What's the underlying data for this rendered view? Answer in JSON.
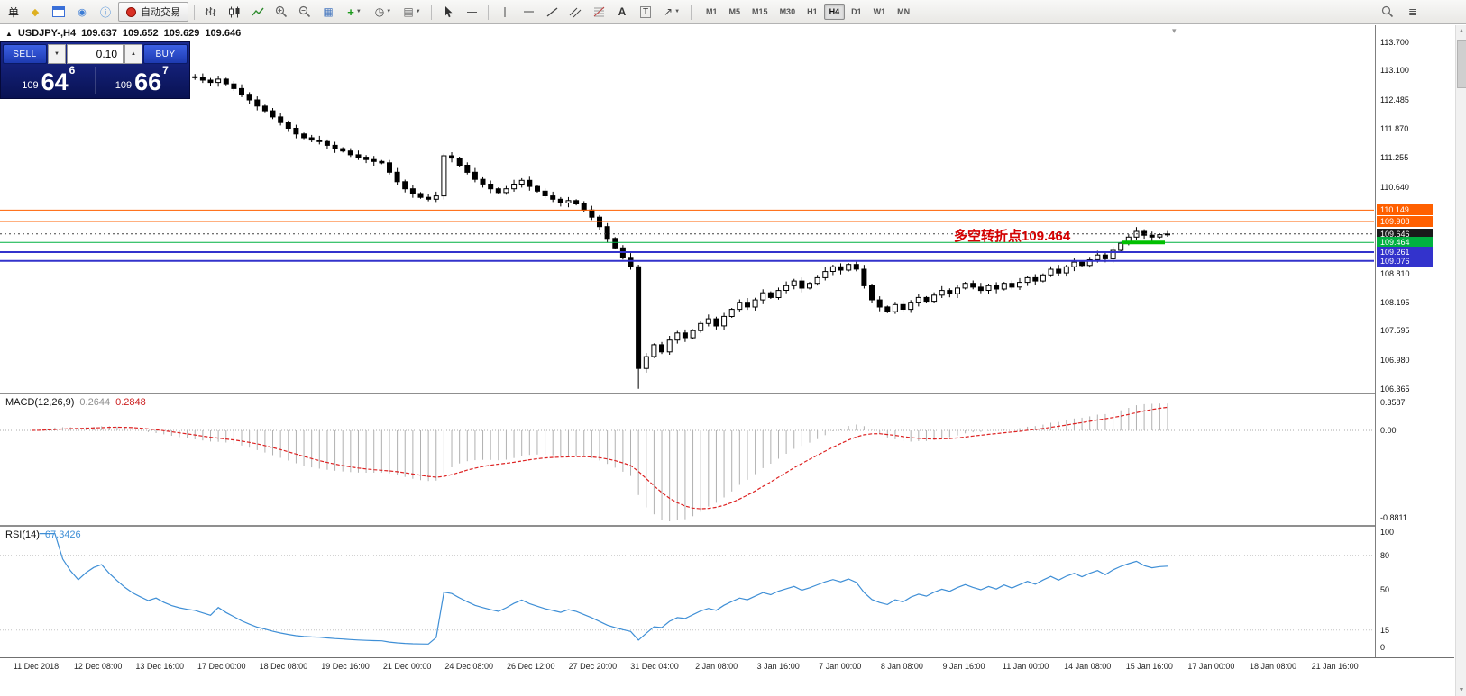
{
  "toolbar": {
    "order_char": "单",
    "autotrading": "自动交易",
    "timeframes": [
      "M1",
      "M5",
      "M15",
      "M30",
      "H1",
      "H4",
      "D1",
      "W1",
      "MN"
    ],
    "active_timeframe": "H4"
  },
  "chart_header": {
    "marker": "▲",
    "symbol": "USDJPY-,H4",
    "open": "109.637",
    "high": "109.652",
    "low": "109.629",
    "close": "109.646"
  },
  "trade_panel": {
    "sell": "SELL",
    "buy": "BUY",
    "lot": "0.10",
    "sell_small": "109",
    "sell_big": "64",
    "sell_sup": "6",
    "buy_small": "109",
    "buy_big": "66",
    "buy_sup": "7"
  },
  "annotation": {
    "text": "多空转折点",
    "value": "109.464"
  },
  "price_axis_labels": [
    "113.700",
    "113.100",
    "112.485",
    "111.870",
    "111.255",
    "110.640",
    "108.810",
    "108.195",
    "107.595",
    "106.980",
    "106.365"
  ],
  "price_levels": [
    {
      "price": 110.149,
      "label": "110.149",
      "color": "#ff6000",
      "thickness": 1,
      "current": false
    },
    {
      "price": 109.908,
      "label": "109.908",
      "color": "#ff6000",
      "thickness": 1,
      "current": false
    },
    {
      "price": 109.646,
      "label": "109.646",
      "color": "#1a1a1a",
      "thickness": 1,
      "current": true
    },
    {
      "price": 109.464,
      "label": "109.464",
      "color": "#00b140",
      "thickness": 1,
      "current": false
    },
    {
      "price": 109.261,
      "label": "109.261",
      "color": "#3333cc",
      "thickness": 2,
      "current": false
    },
    {
      "price": 109.076,
      "label": "109.076",
      "color": "#3333cc",
      "thickness": 2,
      "current": false
    }
  ],
  "macd_panel": {
    "title": "MACD(12,26,9)",
    "value_main": "0.2644",
    "value_signal": "0.2848",
    "axis_top": "0.3587",
    "axis_zero": "0.00",
    "axis_bottom": "-0.8811"
  },
  "rsi_panel": {
    "title": "RSI(14)",
    "value": "67.3426",
    "axis": [
      100,
      80,
      50,
      15,
      0
    ],
    "levels": [
      80,
      15
    ]
  },
  "time_axis": [
    "11 Dec 2018",
    "12 Dec 08:00",
    "13 Dec 16:00",
    "17 Dec 00:00",
    "18 Dec 08:00",
    "19 Dec 16:00",
    "21 Dec 00:00",
    "24 Dec 08:00",
    "26 Dec 12:00",
    "27 Dec 20:00",
    "31 Dec 04:00",
    "2 Jan 08:00",
    "3 Jan 16:00",
    "7 Jan 00:00",
    "8 Jan 08:00",
    "9 Jan 16:00",
    "11 Jan 00:00",
    "14 Jan 08:00",
    "15 Jan 16:00",
    "17 Jan 00:00",
    "18 Jan 08:00",
    "21 Jan 16:00"
  ],
  "colors": {
    "badge_orange": "#ff6000",
    "badge_green": "#00b140",
    "badge_blue": "#3333cc",
    "current_badge": "#1a1a1a",
    "macd_signal_red": "#dd2222",
    "macd_histogram": "#b0b0b0",
    "rsi_blue": "#3f8fd6",
    "annotation_red": "#d40000",
    "annotation_green": "#00c000",
    "panel_navy": "#101c7a",
    "button_blue": "#2447c8"
  },
  "chart_data": {
    "type": "candlestick",
    "symbol": "USDJPY-",
    "timeframe": "H4",
    "ylim": [
      106.27,
      114.06
    ],
    "x_labels": [
      "11 Dec 2018",
      "12 Dec 08:00",
      "13 Dec 16:00",
      "17 Dec 00:00",
      "18 Dec 08:00",
      "19 Dec 16:00",
      "21 Dec 00:00",
      "24 Dec 08:00",
      "26 Dec 12:00",
      "27 Dec 20:00",
      "31 Dec 04:00",
      "2 Jan 08:00",
      "3 Jan 16:00",
      "7 Jan 00:00",
      "8 Jan 08:00",
      "9 Jan 16:00",
      "11 Jan 00:00",
      "14 Jan 08:00",
      "15 Jan 16:00",
      "17 Jan 00:00",
      "18 Jan 08:00",
      "21 Jan 16:00"
    ],
    "closes": [
      113.3,
      113.38,
      113.45,
      113.5,
      113.44,
      113.4,
      113.36,
      113.42,
      113.48,
      113.52,
      113.46,
      113.4,
      113.33,
      113.26,
      113.2,
      113.14,
      113.17,
      113.1,
      113.04,
      113.0,
      112.97,
      112.95,
      112.9,
      112.85,
      112.92,
      112.82,
      112.72,
      112.6,
      112.48,
      112.35,
      112.25,
      112.12,
      112.0,
      111.88,
      111.76,
      111.68,
      111.63,
      111.6,
      111.52,
      111.45,
      111.4,
      111.32,
      111.27,
      111.22,
      111.18,
      111.15,
      110.95,
      110.75,
      110.6,
      110.5,
      110.42,
      110.38,
      110.45,
      111.3,
      111.25,
      111.1,
      110.95,
      110.8,
      110.7,
      110.6,
      110.52,
      110.6,
      110.7,
      110.78,
      110.65,
      110.55,
      110.45,
      110.38,
      110.3,
      110.35,
      110.28,
      110.15,
      110.0,
      109.8,
      109.55,
      109.35,
      109.15,
      108.95,
      106.8,
      107.05,
      107.3,
      107.15,
      107.4,
      107.55,
      107.45,
      107.6,
      107.75,
      107.85,
      107.7,
      107.9,
      108.05,
      108.2,
      108.1,
      108.25,
      108.4,
      108.3,
      108.45,
      108.55,
      108.65,
      108.5,
      108.6,
      108.72,
      108.85,
      108.95,
      108.88,
      109.0,
      108.9,
      108.55,
      108.25,
      108.1,
      108.0,
      108.15,
      108.05,
      108.2,
      108.3,
      108.22,
      108.35,
      108.45,
      108.38,
      108.5,
      108.6,
      108.52,
      108.45,
      108.55,
      108.48,
      108.6,
      108.52,
      108.62,
      108.72,
      108.65,
      108.78,
      108.9,
      108.82,
      108.95,
      109.05,
      108.98,
      109.1,
      109.2,
      109.12,
      109.3,
      109.45,
      109.58,
      109.7,
      109.62,
      109.58,
      109.63,
      109.646
    ],
    "low_overrides": {
      "78": 106.37
    },
    "levels": [
      110.149,
      109.908,
      109.646,
      109.464,
      109.261,
      109.076
    ],
    "indicators": [
      {
        "type": "macd",
        "params": [
          12,
          26,
          9
        ],
        "last_values": [
          0.2644,
          0.2848
        ],
        "axis": [
          0.3587,
          0.0,
          -0.8811
        ]
      },
      {
        "type": "rsi",
        "params": [
          14
        ],
        "last_value": 67.3426,
        "axis": [
          100,
          80,
          50,
          15,
          0
        ]
      }
    ]
  }
}
